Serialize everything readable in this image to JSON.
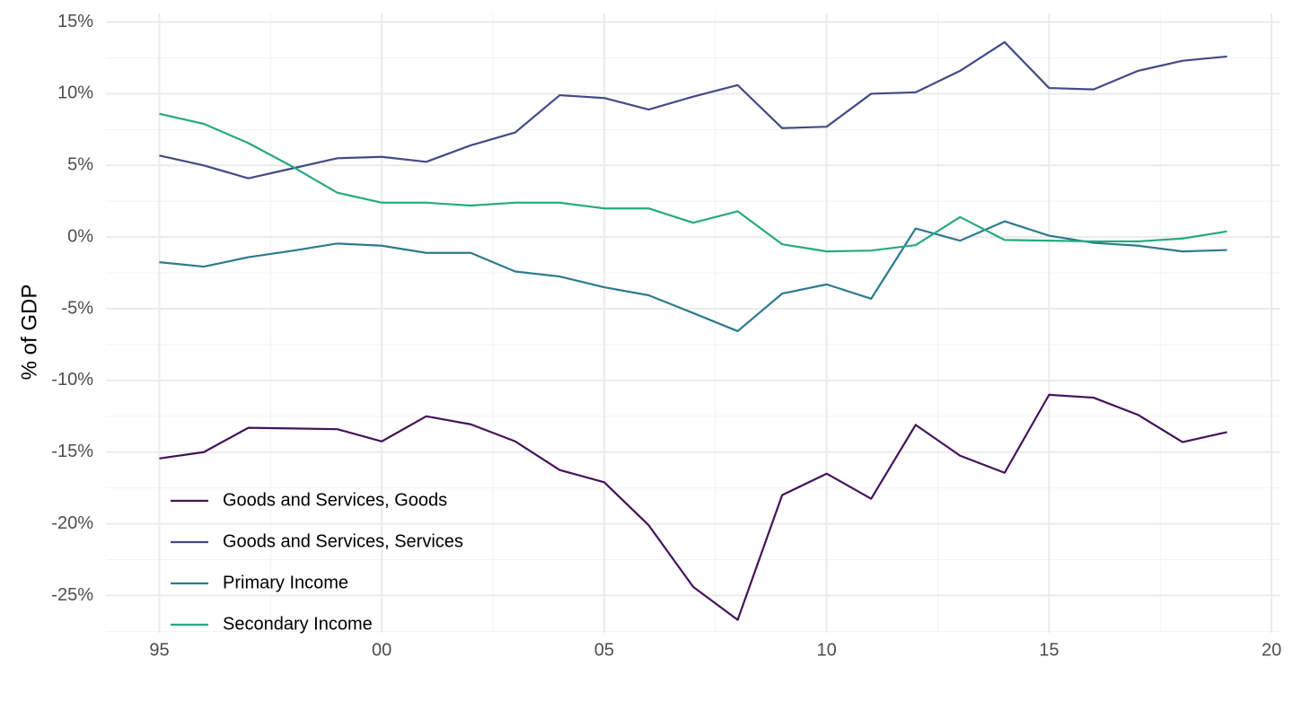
{
  "chart_data": {
    "type": "line",
    "y_label": "% of GDP",
    "x": [
      1995,
      1996,
      1997,
      1998,
      1999,
      2000,
      2001,
      2002,
      2003,
      2004,
      2005,
      2006,
      2007,
      2008,
      2009,
      2010,
      2011,
      2012,
      2013,
      2014,
      2015,
      2016,
      2017,
      2018,
      2019
    ],
    "series": [
      {
        "name": "Goods and Services, Goods",
        "color": "#45125a",
        "values": [
          -15.44,
          -15.0,
          -13.3,
          -13.35,
          -13.4,
          -14.25,
          -12.5,
          -13.06,
          -14.25,
          -16.25,
          -17.1,
          -20.1,
          -24.4,
          -26.7,
          -18.0,
          -16.5,
          -18.25,
          -13.1,
          -15.25,
          -16.44,
          -11.0,
          -11.2,
          -12.4,
          -14.3,
          -13.6
        ]
      },
      {
        "name": "Goods and Services, Services",
        "color": "#424a86",
        "values": [
          5.69,
          5.0,
          4.1,
          4.8,
          5.5,
          5.6,
          5.25,
          6.4,
          7.3,
          9.9,
          9.7,
          8.9,
          9.8,
          10.6,
          7.6,
          7.7,
          10.0,
          10.1,
          11.6,
          13.6,
          10.4,
          10.3,
          11.6,
          12.3,
          12.6
        ]
      },
      {
        "name": "Primary Income",
        "color": "#2d7a8e",
        "values": [
          -1.75,
          -2.06,
          -1.4,
          -0.95,
          -0.45,
          -0.6,
          -1.1,
          -1.1,
          -2.4,
          -2.75,
          -3.5,
          -4.06,
          -5.3,
          -6.56,
          -3.94,
          -3.3,
          -4.3,
          0.6,
          -0.25,
          1.1,
          0.1,
          -0.4,
          -0.6,
          -1.0,
          -0.9
        ]
      },
      {
        "name": "Secondary Income",
        "color": "#27a982",
        "values": [
          8.6,
          7.9,
          6.56,
          4.9,
          3.1,
          2.4,
          2.4,
          2.2,
          2.4,
          2.4,
          2.0,
          2.0,
          1.0,
          1.8,
          -0.5,
          -1.0,
          -0.94,
          -0.56,
          1.4,
          -0.2,
          -0.25,
          -0.3,
          -0.3,
          -0.1,
          0.4
        ]
      }
    ],
    "xlim": [
      1993.8,
      2020.2
    ],
    "xticks": [
      {
        "value": 1995,
        "label": "95"
      },
      {
        "value": 2000,
        "label": "00"
      },
      {
        "value": 2005,
        "label": "05"
      },
      {
        "value": 2010,
        "label": "10"
      },
      {
        "value": 2015,
        "label": "15"
      },
      {
        "value": 2020,
        "label": "20"
      }
    ],
    "ylim": [
      -27.6,
      15.6
    ],
    "yticks": [
      {
        "value": -25,
        "label": "-25%"
      },
      {
        "value": -20,
        "label": "-20%"
      },
      {
        "value": -15,
        "label": "-15%"
      },
      {
        "value": -10,
        "label": "-10%"
      },
      {
        "value": -5,
        "label": "-5%"
      },
      {
        "value": 0,
        "label": "0%"
      },
      {
        "value": 5,
        "label": "5%"
      },
      {
        "value": 10,
        "label": "10%"
      },
      {
        "value": 15,
        "label": "15%"
      }
    ],
    "grid": true,
    "legend": "bottom-left"
  }
}
